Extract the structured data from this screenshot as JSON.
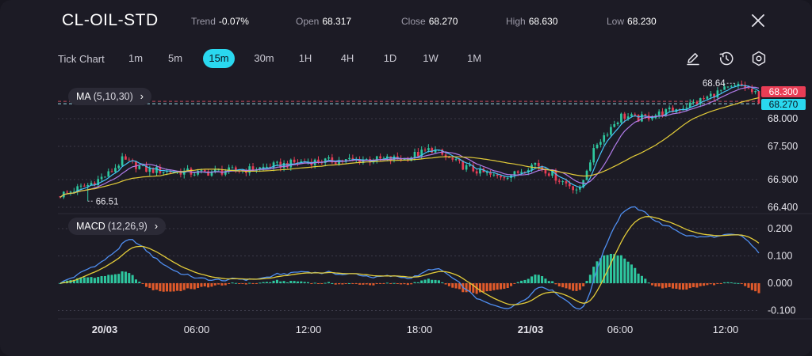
{
  "header": {
    "symbol": "CL-OIL-STD",
    "trend_label": "Trend",
    "trend_value": "-0.07%",
    "open_label": "Open",
    "open_value": "68.317",
    "close_label": "Close",
    "close_value": "68.270",
    "high_label": "High",
    "high_value": "68.630",
    "low_label": "Low",
    "low_value": "68.230"
  },
  "icons": {
    "close": "close-icon",
    "draw": "pencil-icon",
    "history": "history-clock-icon",
    "settings": "gear-icon"
  },
  "toolbar": {
    "label": "Tick Chart",
    "timeframes": [
      "1m",
      "5m",
      "15m",
      "30m",
      "1H",
      "4H",
      "1D",
      "1W",
      "1M"
    ],
    "active": "15m"
  },
  "indicators": {
    "ma": {
      "name": "MA",
      "params": "(5,10,30)"
    },
    "macd": {
      "name": "MACD",
      "params": "(12,26,9)"
    }
  },
  "price_badges": {
    "ask": "68.300",
    "last": "68.270"
  },
  "colors": {
    "background": "#1c1b25",
    "accent": "#2ad8ef",
    "up": "#2ec79f",
    "down": "#e83d55",
    "ma5": "#45c3f7",
    "ma10": "#b07be8",
    "ma30": "#e3cc39",
    "hist_up": "#2ec79f",
    "hist_down": "#e05a2b",
    "macd": "#4f8ef0",
    "signal": "#e3cc39"
  },
  "chart_data": [
    {
      "type": "candlestick",
      "interval": "15m",
      "x_ticks": [
        "20/03",
        "06:00",
        "12:00",
        "18:00",
        "21/03",
        "06:00",
        "12:00"
      ],
      "y_ticks": [
        "68.000",
        "67.500",
        "66.900",
        "66.400"
      ],
      "ylim": [
        66.4,
        68.75
      ],
      "grid": true,
      "annotations": {
        "max": "68.64",
        "min": "66.51"
      },
      "candles": [],
      "ma_series": [
        {
          "name": "MA5"
        },
        {
          "name": "MA10"
        },
        {
          "name": "MA30"
        }
      ]
    },
    {
      "type": "macd",
      "y_ticks": [
        "0.200",
        "0.100",
        "0.000",
        "-0.100"
      ],
      "ylim": [
        -0.13,
        0.27
      ],
      "grid": true,
      "series": [
        {
          "name": "MACD"
        },
        {
          "name": "Signal"
        },
        {
          "name": "Histogram"
        }
      ],
      "macd": [],
      "signal": [],
      "histogram": []
    }
  ]
}
